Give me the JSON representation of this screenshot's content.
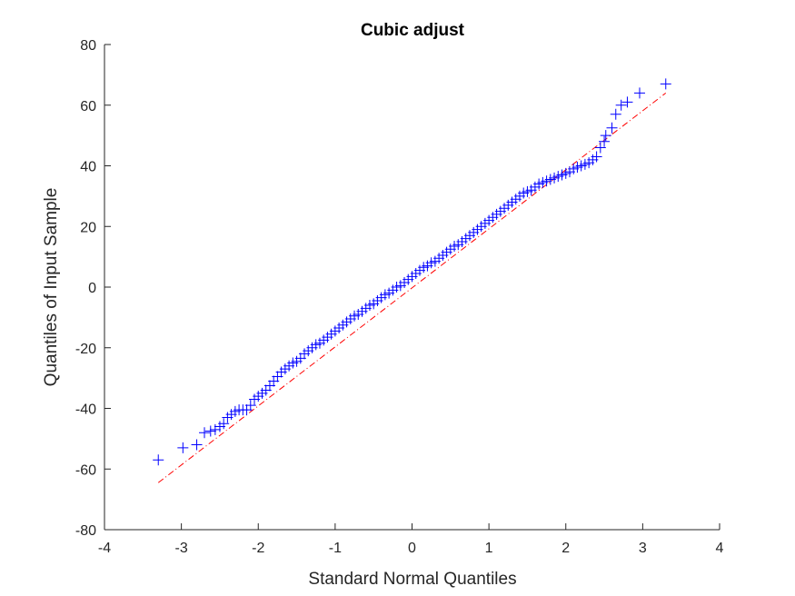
{
  "chart_data": {
    "type": "scatter",
    "title": "Cubic adjust",
    "xlabel": "Standard Normal Quantiles",
    "ylabel": "Quantiles of Input Sample",
    "xlim": [
      -4,
      4
    ],
    "ylim": [
      -80,
      80
    ],
    "xticks": [
      -4,
      -3,
      -2,
      -1,
      0,
      1,
      2,
      3,
      4
    ],
    "yticks": [
      -80,
      -60,
      -40,
      -20,
      0,
      20,
      40,
      60,
      80
    ],
    "xtick_labels": [
      "-4",
      "-3",
      "-2",
      "-1",
      "0",
      "1",
      "2",
      "3",
      "4"
    ],
    "ytick_labels": [
      "-80",
      "-60",
      "-40",
      "-20",
      "0",
      "20",
      "40",
      "60",
      "80"
    ],
    "grid": false,
    "marker": "+",
    "marker_color": "#0000ff",
    "reference_line_color": "#ff0000",
    "reference_line_style": "dash-dot",
    "reference_line": {
      "x": [
        -3.3,
        3.3
      ],
      "y": [
        -64.5,
        64.0
      ]
    },
    "series": [
      {
        "x": [
          -3.3,
          -2.98,
          -2.8,
          -2.7,
          -2.62,
          -2.56,
          -2.5,
          -2.45,
          -2.4,
          -2.35,
          -2.3,
          -2.25,
          -2.2,
          -2.15,
          -2.1,
          -2.05,
          -2.0,
          -1.95,
          -1.9,
          -1.85,
          -1.8,
          -1.75,
          -1.7,
          -1.65,
          -1.6,
          -1.55,
          -1.5,
          -1.45,
          -1.4,
          -1.35,
          -1.3,
          -1.25,
          -1.2,
          -1.15,
          -1.1,
          -1.05,
          -1.0,
          -0.95,
          -0.9,
          -0.85,
          -0.8,
          -0.75,
          -0.7,
          -0.65,
          -0.6,
          -0.55,
          -0.5,
          -0.45,
          -0.4,
          -0.35,
          -0.3,
          -0.25,
          -0.2,
          -0.15,
          -0.1,
          -0.05,
          0.0,
          0.05,
          0.1,
          0.15,
          0.2,
          0.25,
          0.3,
          0.35,
          0.4,
          0.45,
          0.5,
          0.55,
          0.6,
          0.65,
          0.7,
          0.75,
          0.8,
          0.85,
          0.9,
          0.95,
          1.0,
          1.05,
          1.1,
          1.15,
          1.2,
          1.25,
          1.3,
          1.35,
          1.4,
          1.45,
          1.5,
          1.55,
          1.6,
          1.65,
          1.7,
          1.75,
          1.8,
          1.85,
          1.9,
          1.95,
          2.0,
          2.05,
          2.1,
          2.15,
          2.2,
          2.25,
          2.3,
          2.35,
          2.4,
          2.45,
          2.5,
          2.52,
          2.6,
          2.65,
          2.72,
          2.8,
          2.96,
          3.3
        ],
        "y": [
          -57,
          -53,
          -52,
          -48,
          -47.5,
          -47,
          -46,
          -45,
          -43,
          -42,
          -41,
          -40.5,
          -40.5,
          -40.5,
          -39,
          -37,
          -36,
          -35,
          -34,
          -32.5,
          -31,
          -29.5,
          -28,
          -27,
          -26,
          -25,
          -24.5,
          -23.5,
          -22,
          -21,
          -20,
          -19,
          -18.5,
          -17.5,
          -16.5,
          -15.5,
          -14.5,
          -13.5,
          -12.5,
          -11.5,
          -10.5,
          -9.5,
          -9,
          -8,
          -7,
          -6,
          -5.5,
          -4.5,
          -3.5,
          -2.5,
          -2,
          -1,
          0,
          0.5,
          1.5,
          2.5,
          3.5,
          4.5,
          5.5,
          6.5,
          7,
          8,
          8.5,
          9.5,
          10.5,
          11.5,
          12.5,
          13.5,
          14,
          15,
          16,
          17,
          18,
          19,
          20,
          21,
          22,
          23,
          24,
          25,
          26,
          27,
          28,
          29,
          30,
          31,
          31.5,
          32,
          33,
          34,
          34.5,
          35,
          35.5,
          36,
          36.5,
          37,
          37.5,
          38,
          39,
          39.5,
          40,
          40.5,
          41,
          42,
          43,
          46,
          48,
          50,
          52.5,
          57,
          60,
          61,
          64,
          67
        ]
      }
    ]
  }
}
